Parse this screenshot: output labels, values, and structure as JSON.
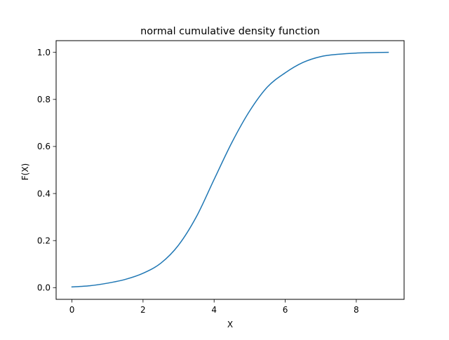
{
  "chart_data": {
    "type": "line",
    "title": "normal cumulative density function",
    "xlabel": "X",
    "ylabel": "F(X)",
    "xlim": [
      -0.445,
      9.345
    ],
    "ylim": [
      -0.0497,
      1.0497
    ],
    "xticks": [
      0,
      2,
      4,
      6,
      8
    ],
    "xtick_labels": [
      "0",
      "2",
      "4",
      "6",
      "8"
    ],
    "yticks": [
      0.0,
      0.2,
      0.4,
      0.6,
      0.8,
      1.0
    ],
    "ytick_labels": [
      "0.0",
      "0.2",
      "0.4",
      "0.6",
      "0.8",
      "1.0"
    ],
    "grid": false,
    "line_color": "#1f77b4",
    "series": [
      {
        "x": [
          0,
          0.5,
          1,
          1.5,
          2,
          2.5,
          3,
          3.5,
          4,
          4.5,
          5,
          5.5,
          6,
          6.5,
          7,
          7.5,
          8,
          8.5,
          8.9
        ],
        "values": [
          0.003,
          0.008,
          0.019,
          0.035,
          0.061,
          0.104,
          0.181,
          0.301,
          0.46,
          0.617,
          0.751,
          0.853,
          0.913,
          0.957,
          0.982,
          0.992,
          0.997,
          0.999,
          1.0
        ]
      }
    ]
  }
}
